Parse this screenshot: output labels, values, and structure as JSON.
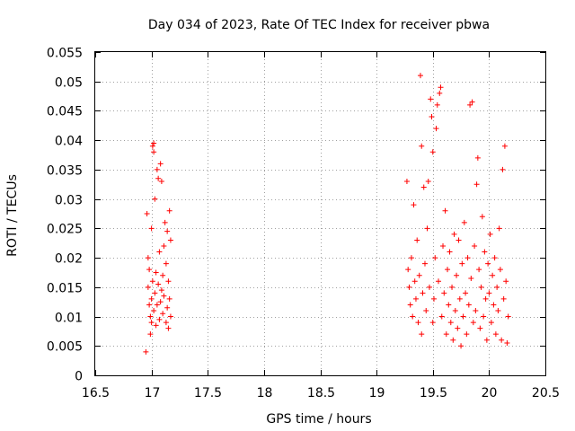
{
  "chart_data": {
    "type": "scatter",
    "title": "Day 034 of 2023, Rate Of TEC Index for receiver pbwa",
    "xlabel": "GPS time / hours",
    "ylabel": "ROTI / TECUs",
    "xlim": [
      16.5,
      20.5
    ],
    "ylim": [
      0,
      0.055
    ],
    "xticks": [
      "16.5",
      "17",
      "17.5",
      "18",
      "18.5",
      "19",
      "19.5",
      "20",
      "20.5"
    ],
    "yticks": [
      "0",
      "0.005",
      "0.01",
      "0.015",
      "0.02",
      "0.025",
      "0.03",
      "0.035",
      "0.04",
      "0.045",
      "0.05",
      "0.055"
    ],
    "grid": true,
    "marker": "+",
    "color": "#ff0000",
    "series": [
      {
        "name": "ROTI",
        "points": [
          [
            16.95,
            0.004
          ],
          [
            16.96,
            0.0275
          ],
          [
            16.97,
            0.02
          ],
          [
            16.97,
            0.015
          ],
          [
            16.98,
            0.012
          ],
          [
            16.98,
            0.018
          ],
          [
            16.99,
            0.01
          ],
          [
            16.99,
            0.007
          ],
          [
            17.0,
            0.009
          ],
          [
            17.0,
            0.013
          ],
          [
            17.0,
            0.025
          ],
          [
            17.01,
            0.016
          ],
          [
            17.01,
            0.039
          ],
          [
            17.02,
            0.0395
          ],
          [
            17.02,
            0.038
          ],
          [
            17.02,
            0.011
          ],
          [
            17.03,
            0.014
          ],
          [
            17.03,
            0.03
          ],
          [
            17.04,
            0.0175
          ],
          [
            17.04,
            0.0085
          ],
          [
            17.05,
            0.012
          ],
          [
            17.05,
            0.035
          ],
          [
            17.06,
            0.0155
          ],
          [
            17.06,
            0.0335
          ],
          [
            17.07,
            0.0095
          ],
          [
            17.07,
            0.021
          ],
          [
            17.08,
            0.0125
          ],
          [
            17.08,
            0.036
          ],
          [
            17.09,
            0.0145
          ],
          [
            17.09,
            0.033
          ],
          [
            17.1,
            0.017
          ],
          [
            17.1,
            0.0105
          ],
          [
            17.11,
            0.022
          ],
          [
            17.11,
            0.0135
          ],
          [
            17.12,
            0.026
          ],
          [
            17.13,
            0.019
          ],
          [
            17.13,
            0.009
          ],
          [
            17.14,
            0.0115
          ],
          [
            17.14,
            0.0245
          ],
          [
            17.15,
            0.008
          ],
          [
            17.15,
            0.016
          ],
          [
            17.16,
            0.028
          ],
          [
            17.16,
            0.013
          ],
          [
            17.17,
            0.023
          ],
          [
            17.17,
            0.01
          ],
          [
            19.27,
            0.033
          ],
          [
            19.28,
            0.018
          ],
          [
            19.29,
            0.015
          ],
          [
            19.3,
            0.012
          ],
          [
            19.31,
            0.02
          ],
          [
            19.32,
            0.01
          ],
          [
            19.33,
            0.029
          ],
          [
            19.34,
            0.016
          ],
          [
            19.35,
            0.013
          ],
          [
            19.36,
            0.023
          ],
          [
            19.37,
            0.009
          ],
          [
            19.38,
            0.017
          ],
          [
            19.39,
            0.051
          ],
          [
            19.4,
            0.039
          ],
          [
            19.4,
            0.007
          ],
          [
            19.41,
            0.014
          ],
          [
            19.42,
            0.032
          ],
          [
            19.43,
            0.019
          ],
          [
            19.44,
            0.011
          ],
          [
            19.45,
            0.025
          ],
          [
            19.46,
            0.033
          ],
          [
            19.47,
            0.015
          ],
          [
            19.48,
            0.047
          ],
          [
            19.49,
            0.044
          ],
          [
            19.5,
            0.038
          ],
          [
            19.5,
            0.009
          ],
          [
            19.51,
            0.013
          ],
          [
            19.52,
            0.02
          ],
          [
            19.53,
            0.042
          ],
          [
            19.54,
            0.046
          ],
          [
            19.55,
            0.016
          ],
          [
            19.56,
            0.048
          ],
          [
            19.57,
            0.049
          ],
          [
            19.58,
            0.01
          ],
          [
            19.59,
            0.022
          ],
          [
            19.6,
            0.014
          ],
          [
            19.61,
            0.028
          ],
          [
            19.62,
            0.007
          ],
          [
            19.63,
            0.018
          ],
          [
            19.64,
            0.012
          ],
          [
            19.65,
            0.021
          ],
          [
            19.66,
            0.009
          ],
          [
            19.67,
            0.015
          ],
          [
            19.68,
            0.006
          ],
          [
            19.69,
            0.024
          ],
          [
            19.7,
            0.011
          ],
          [
            19.71,
            0.017
          ],
          [
            19.72,
            0.008
          ],
          [
            19.73,
            0.023
          ],
          [
            19.74,
            0.013
          ],
          [
            19.75,
            0.005
          ],
          [
            19.76,
            0.019
          ],
          [
            19.77,
            0.01
          ],
          [
            19.78,
            0.026
          ],
          [
            19.79,
            0.014
          ],
          [
            19.8,
            0.007
          ],
          [
            19.81,
            0.02
          ],
          [
            19.82,
            0.012
          ],
          [
            19.83,
            0.046
          ],
          [
            19.84,
            0.0165
          ],
          [
            19.85,
            0.0465
          ],
          [
            19.86,
            0.009
          ],
          [
            19.87,
            0.022
          ],
          [
            19.88,
            0.011
          ],
          [
            19.89,
            0.0325
          ],
          [
            19.9,
            0.037
          ],
          [
            19.91,
            0.018
          ],
          [
            19.92,
            0.008
          ],
          [
            19.93,
            0.015
          ],
          [
            19.94,
            0.027
          ],
          [
            19.95,
            0.01
          ],
          [
            19.96,
            0.021
          ],
          [
            19.97,
            0.013
          ],
          [
            19.98,
            0.006
          ],
          [
            19.99,
            0.019
          ],
          [
            20.0,
            0.014
          ],
          [
            20.01,
            0.024
          ],
          [
            20.02,
            0.009
          ],
          [
            20.03,
            0.017
          ],
          [
            20.04,
            0.012
          ],
          [
            20.05,
            0.02
          ],
          [
            20.06,
            0.007
          ],
          [
            20.07,
            0.015
          ],
          [
            20.08,
            0.011
          ],
          [
            20.09,
            0.025
          ],
          [
            20.1,
            0.018
          ],
          [
            20.11,
            0.006
          ],
          [
            20.12,
            0.035
          ],
          [
            20.13,
            0.013
          ],
          [
            20.14,
            0.039
          ],
          [
            20.15,
            0.016
          ],
          [
            20.16,
            0.0055
          ],
          [
            20.17,
            0.01
          ]
        ]
      }
    ]
  }
}
